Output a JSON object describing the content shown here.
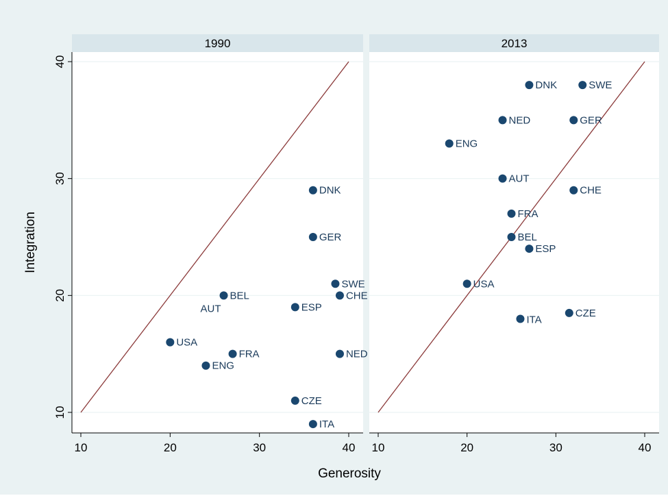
{
  "chart_data": {
    "type": "scatter",
    "xlabel": "Generosity",
    "ylabel": "Integration",
    "xlim": [
      9,
      41
    ],
    "ylim": [
      9,
      40
    ],
    "x_ticks": [
      "10",
      "20",
      "30",
      "40"
    ],
    "y_ticks": [
      "10",
      "20",
      "30",
      "40"
    ],
    "reference_line": {
      "from": [
        10,
        10
      ],
      "to": [
        40,
        40
      ],
      "color": "#8b3a3a"
    },
    "colors": {
      "background": "#eaf2f3",
      "plot_bg": "#ffffff",
      "strip_bg": "#d9e6eb",
      "marker": "#1a476f",
      "grid": "#eaf2f3",
      "axis": "#000000"
    },
    "panels": [
      {
        "title": "1990",
        "points": [
          {
            "label": "DNK",
            "x": 36,
            "y": 29
          },
          {
            "label": "GER",
            "x": 36,
            "y": 25
          },
          {
            "label": "SWE",
            "x": 38.5,
            "y": 21
          },
          {
            "label": "CHE",
            "x": 39,
            "y": 20
          },
          {
            "label": "BEL",
            "x": 26,
            "y": 20
          },
          {
            "label": "AUT",
            "x": 26,
            "y": 20,
            "label_pos": "left-below"
          },
          {
            "label": "ESP",
            "x": 34,
            "y": 19
          },
          {
            "label": "USA",
            "x": 20,
            "y": 16
          },
          {
            "label": "FRA",
            "x": 27,
            "y": 15
          },
          {
            "label": "NED",
            "x": 39,
            "y": 15
          },
          {
            "label": "ENG",
            "x": 24,
            "y": 14
          },
          {
            "label": "CZE",
            "x": 34,
            "y": 11
          },
          {
            "label": "ITA",
            "x": 36,
            "y": 9
          }
        ]
      },
      {
        "title": "2013",
        "points": [
          {
            "label": "DNK",
            "x": 27,
            "y": 38
          },
          {
            "label": "SWE",
            "x": 33,
            "y": 38
          },
          {
            "label": "NED",
            "x": 24,
            "y": 35
          },
          {
            "label": "GER",
            "x": 32,
            "y": 35
          },
          {
            "label": "ENG",
            "x": 18,
            "y": 33
          },
          {
            "label": "AUT",
            "x": 24,
            "y": 30
          },
          {
            "label": "CHE",
            "x": 32,
            "y": 29
          },
          {
            "label": "FRA",
            "x": 25,
            "y": 27
          },
          {
            "label": "BEL",
            "x": 25,
            "y": 25
          },
          {
            "label": "ESP",
            "x": 27,
            "y": 24
          },
          {
            "label": "USA",
            "x": 20,
            "y": 21
          },
          {
            "label": "CZE",
            "x": 31.5,
            "y": 18.5
          },
          {
            "label": "ITA",
            "x": 26,
            "y": 18,
            "label_pos": "right-below"
          }
        ]
      }
    ]
  }
}
